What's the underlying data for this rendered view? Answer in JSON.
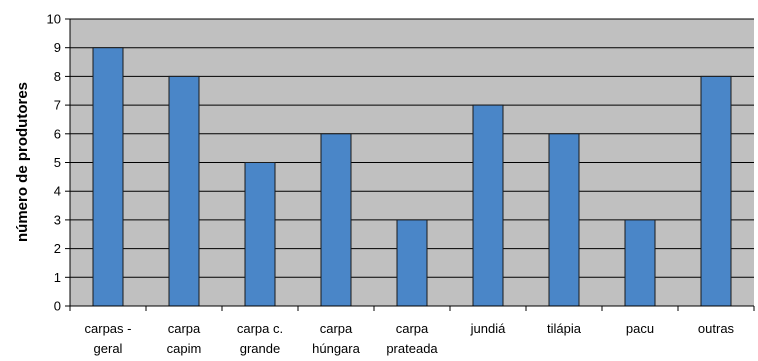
{
  "chart_data": {
    "type": "bar",
    "title": "",
    "xlabel": "",
    "ylabel": "número de produtores",
    "ylim": [
      0,
      10
    ],
    "yticks": [
      0,
      1,
      2,
      3,
      4,
      5,
      6,
      7,
      8,
      9,
      10
    ],
    "grid": true,
    "categories": [
      [
        "carpas -",
        "geral"
      ],
      [
        "carpa",
        "capim"
      ],
      [
        "carpa c.",
        "grande"
      ],
      [
        "carpa",
        "húngara"
      ],
      [
        "carpa",
        "prateada"
      ],
      [
        "jundiá"
      ],
      [
        "tilápia"
      ],
      [
        "pacu"
      ],
      [
        "outras"
      ]
    ],
    "values": [
      9,
      8,
      5,
      6,
      3,
      7,
      6,
      3,
      8
    ],
    "colors": {
      "bar_fill": "#4a86c8",
      "bar_stroke": "#1a1a1a",
      "plot_background": "#c0c0c0",
      "gridline": "#000000"
    }
  }
}
